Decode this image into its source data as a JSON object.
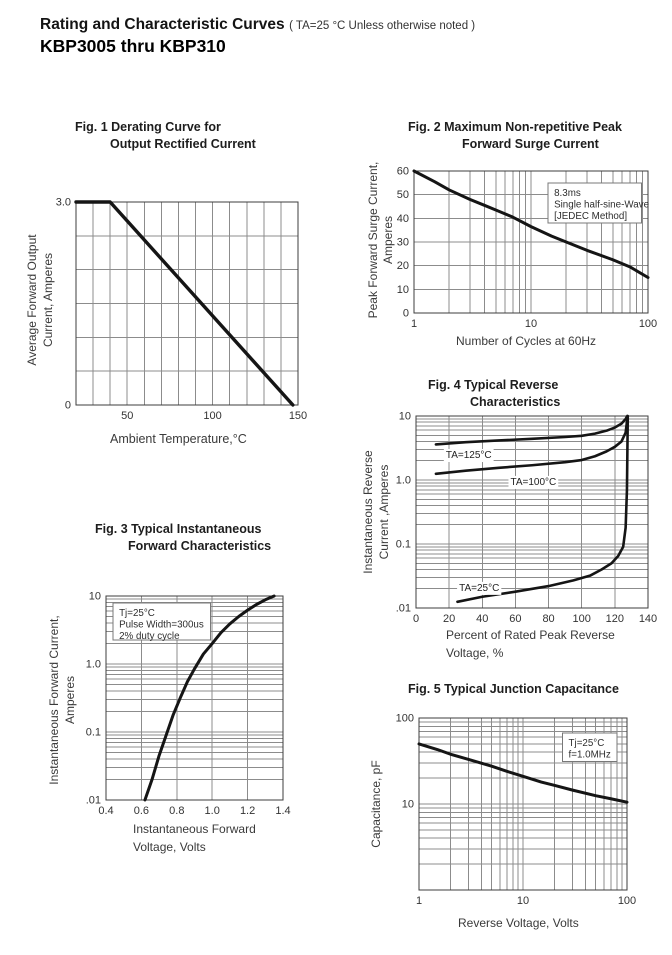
{
  "header": {
    "title": "Rating and Characteristic Curves",
    "note": "( TA=25 °C Unless otherwise noted )",
    "part_range": "KBP3005 thru KBP310"
  },
  "chart_data": [
    {
      "id": "fig1",
      "type": "line",
      "title_lines": [
        "Fig. 1 Derating Curve for",
        "Output Rectified Current"
      ],
      "ylabel_lines": [
        "Average Forward Output",
        "Current, Amperes"
      ],
      "xlabel_lines": [
        "Ambient Temperature,°C"
      ],
      "xaxis": {
        "scale": "linear",
        "min": 20,
        "max": 150,
        "grid_step": 10,
        "ticks": [
          {
            "v": 50,
            "label": "50"
          },
          {
            "v": 100,
            "label": "100"
          },
          {
            "v": 150,
            "label": "150"
          }
        ]
      },
      "yaxis": {
        "scale": "linear",
        "min": 0,
        "max": 3,
        "grid_step": 0.5,
        "ticks": [
          {
            "v": 3,
            "label": "3.0"
          },
          {
            "v": 0,
            "label": "0"
          }
        ]
      },
      "series": [
        {
          "name": "output-current-derating",
          "points": [
            [
              20,
              3
            ],
            [
              40,
              3
            ],
            [
              147,
              0
            ]
          ]
        }
      ],
      "annotations": [],
      "curve_labels": []
    },
    {
      "id": "fig2",
      "type": "line",
      "title_lines": [
        "Fig. 2 Maximum Non-repetitive Peak",
        "Forward Surge Current"
      ],
      "ylabel_lines": [
        "Peak Forward Surge Current,",
        "Amperes"
      ],
      "xlabel_lines": [
        "Number of Cycles at 60Hz"
      ],
      "xaxis": {
        "scale": "log",
        "min": 1,
        "max": 100,
        "ticks": [
          {
            "v": 1,
            "label": "1"
          },
          {
            "v": 10,
            "label": "10"
          },
          {
            "v": 100,
            "label": "100"
          }
        ]
      },
      "yaxis": {
        "scale": "linear",
        "min": 0,
        "max": 60,
        "grid_step": 10,
        "ticks": [
          {
            "v": 60,
            "label": "60"
          },
          {
            "v": 50,
            "label": "50"
          },
          {
            "v": 40,
            "label": "40"
          },
          {
            "v": 30,
            "label": "30"
          },
          {
            "v": 20,
            "label": "20"
          },
          {
            "v": 10,
            "label": "10"
          },
          {
            "v": 0,
            "label": "0"
          }
        ]
      },
      "series": [
        {
          "name": "peak-surge-current",
          "points": [
            [
              1,
              60
            ],
            [
              1.5,
              55.5
            ],
            [
              2,
              52
            ],
            [
              3,
              48
            ],
            [
              4,
              45.5
            ],
            [
              5,
              43.5
            ],
            [
              7,
              40.5
            ],
            [
              10,
              36.5
            ],
            [
              15,
              32.5
            ],
            [
              20,
              30
            ],
            [
              30,
              26.5
            ],
            [
              50,
              22.5
            ],
            [
              70,
              19.5
            ],
            [
              100,
              15
            ]
          ]
        }
      ],
      "annotations": [
        {
          "lines": [
            "8.3ms",
            "Single half-sine-Wave",
            "[JEDEC Method]"
          ],
          "x_range": [
            14,
            88
          ],
          "y_range": [
            38,
            55
          ],
          "border": true
        }
      ],
      "curve_labels": []
    },
    {
      "id": "fig3",
      "type": "line",
      "title_lines": [
        "Fig. 3 Typical Instantaneous",
        "Forward Characteristics"
      ],
      "ylabel_lines": [
        "Instantaneous Forward Current,",
        "Amperes"
      ],
      "xlabel_lines": [
        "Instantaneous Forward",
        "Voltage, Volts"
      ],
      "xaxis": {
        "scale": "linear",
        "min": 0.4,
        "max": 1.4,
        "grid_step": 0.2,
        "ticks": [
          {
            "v": 0.4,
            "label": "0.4"
          },
          {
            "v": 0.6,
            "label": "0.6"
          },
          {
            "v": 0.8,
            "label": "0.8"
          },
          {
            "v": 1.0,
            "label": "1.0"
          },
          {
            "v": 1.2,
            "label": "1.2"
          },
          {
            "v": 1.4,
            "label": "1.4"
          }
        ]
      },
      "yaxis": {
        "scale": "log",
        "min": 0.01,
        "max": 10,
        "ticks": [
          {
            "v": 10,
            "label": "10"
          },
          {
            "v": 1,
            "label": "1.0"
          },
          {
            "v": 0.1,
            "label": "0.1"
          },
          {
            "v": 0.01,
            "label": ".01"
          }
        ]
      },
      "series": [
        {
          "name": "forward-characteristic",
          "points": [
            [
              0.62,
              0.01
            ],
            [
              0.66,
              0.02
            ],
            [
              0.7,
              0.045
            ],
            [
              0.74,
              0.09
            ],
            [
              0.78,
              0.18
            ],
            [
              0.82,
              0.32
            ],
            [
              0.86,
              0.55
            ],
            [
              0.9,
              0.85
            ],
            [
              0.95,
              1.4
            ],
            [
              1.0,
              2.0
            ],
            [
              1.05,
              2.9
            ],
            [
              1.1,
              3.9
            ],
            [
              1.15,
              5.0
            ],
            [
              1.2,
              6.2
            ],
            [
              1.25,
              7.5
            ],
            [
              1.3,
              8.8
            ],
            [
              1.35,
              10
            ]
          ]
        }
      ],
      "annotations": [
        {
          "lines": [
            "Tj=25°C",
            "Pulse Width=300us",
            "2% duty cycle"
          ],
          "x_range": [
            0.44,
            0.99
          ],
          "y_range": [
            2.25,
            7.9
          ],
          "border": true
        }
      ],
      "curve_labels": []
    },
    {
      "id": "fig4",
      "type": "line",
      "title_lines": [
        "Fig. 4 Typical Reverse",
        "Characteristics"
      ],
      "ylabel_lines": [
        "Instantaneous Reverse",
        "Current ,Amperes"
      ],
      "xlabel_lines": [
        "Percent of Rated Peak Reverse",
        "Voltage, %"
      ],
      "xaxis": {
        "scale": "linear",
        "min": 0,
        "max": 140,
        "grid_step": 20,
        "ticks": [
          {
            "v": 0,
            "label": "0"
          },
          {
            "v": 20,
            "label": "20"
          },
          {
            "v": 40,
            "label": "40"
          },
          {
            "v": 60,
            "label": "60"
          },
          {
            "v": 80,
            "label": "80"
          },
          {
            "v": 100,
            "label": "100"
          },
          {
            "v": 120,
            "label": "120"
          },
          {
            "v": 140,
            "label": "140"
          }
        ]
      },
      "yaxis": {
        "scale": "log",
        "min": 0.01,
        "max": 10,
        "ticks": [
          {
            "v": 10,
            "label": "10"
          },
          {
            "v": 1,
            "label": "1.0"
          },
          {
            "v": 0.1,
            "label": "0.1"
          },
          {
            "v": 0.01,
            "label": ".01"
          }
        ]
      },
      "series": [
        {
          "name": "ta-125c",
          "points": [
            [
              12,
              3.6
            ],
            [
              30,
              3.9
            ],
            [
              50,
              4.15
            ],
            [
              70,
              4.4
            ],
            [
              90,
              4.7
            ],
            [
              100,
              4.9
            ],
            [
              108,
              5.3
            ],
            [
              115,
              5.9
            ],
            [
              120,
              6.6
            ],
            [
              124,
              7.6
            ],
            [
              126.5,
              9.0
            ],
            [
              127.5,
              10
            ]
          ]
        },
        {
          "name": "ta-100c",
          "points": [
            [
              12,
              1.25
            ],
            [
              30,
              1.4
            ],
            [
              50,
              1.55
            ],
            [
              70,
              1.7
            ],
            [
              90,
              1.9
            ],
            [
              100,
              2.05
            ],
            [
              108,
              2.35
            ],
            [
              115,
              2.8
            ],
            [
              120,
              3.3
            ],
            [
              124,
              4.0
            ],
            [
              126.5,
              5.5
            ],
            [
              127.5,
              9.0
            ]
          ]
        },
        {
          "name": "ta-25c",
          "points": [
            [
              25,
              0.0125
            ],
            [
              40,
              0.015
            ],
            [
              60,
              0.018
            ],
            [
              80,
              0.022
            ],
            [
              95,
              0.027
            ],
            [
              105,
              0.032
            ],
            [
              112,
              0.04
            ],
            [
              118,
              0.05
            ],
            [
              122,
              0.065
            ],
            [
              125,
              0.09
            ],
            [
              126.5,
              0.18
            ],
            [
              127.3,
              0.7
            ],
            [
              127.8,
              10
            ]
          ]
        }
      ],
      "annotations": [],
      "curve_labels": [
        {
          "text": "TA=125°C",
          "x": 18,
          "y": 2.5
        },
        {
          "text": "TA=100°C",
          "x": 57,
          "y": 0.95
        },
        {
          "text": "TA=25°C",
          "x": 26,
          "y": 0.021
        }
      ]
    },
    {
      "id": "fig5",
      "type": "line",
      "title_lines": [
        "Fig. 5 Typical Junction Capacitance"
      ],
      "ylabel_lines": [
        "Capacitance, pF"
      ],
      "xlabel_lines": [
        "Reverse Voltage, Volts"
      ],
      "xaxis": {
        "scale": "log",
        "min": 1,
        "max": 100,
        "ticks": [
          {
            "v": 1,
            "label": "1"
          },
          {
            "v": 10,
            "label": "10"
          },
          {
            "v": 100,
            "label": "100"
          }
        ]
      },
      "yaxis": {
        "scale": "log",
        "min": 1,
        "max": 100,
        "ticks": [
          {
            "v": 100,
            "label": "100"
          },
          {
            "v": 10,
            "label": "10"
          }
        ]
      },
      "series": [
        {
          "name": "junction-capacitance",
          "points": [
            [
              1,
              50
            ],
            [
              1.5,
              43
            ],
            [
              2,
              38
            ],
            [
              3,
              33
            ],
            [
              5,
              27.5
            ],
            [
              7,
              24
            ],
            [
              10,
              21
            ],
            [
              15,
              18
            ],
            [
              20,
              16.5
            ],
            [
              30,
              14.5
            ],
            [
              50,
              12.5
            ],
            [
              70,
              11.5
            ],
            [
              100,
              10.5
            ]
          ]
        }
      ],
      "annotations": [
        {
          "lines": [
            "Tj=25°C",
            "f=1.0MHz"
          ],
          "x_range": [
            24,
            80
          ],
          "y_range": [
            31,
            67
          ],
          "border": true
        }
      ],
      "curve_labels": []
    }
  ]
}
